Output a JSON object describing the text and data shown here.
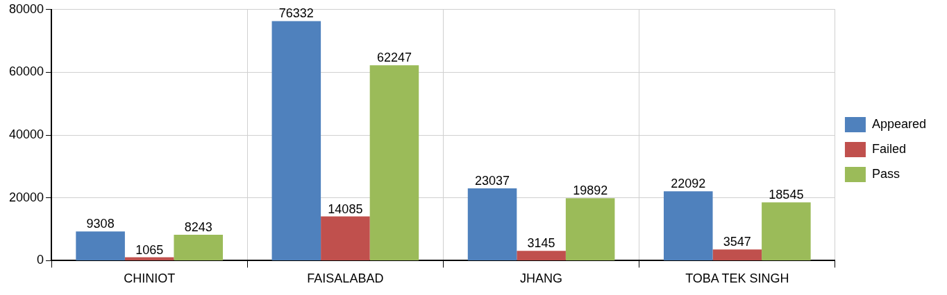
{
  "chart_data": {
    "type": "bar",
    "categories": [
      "CHINIOT",
      "FAISALABAD",
      "JHANG",
      "TOBA TEK SINGH"
    ],
    "series": [
      {
        "name": "Appeared",
        "color": "#4f81bd",
        "values": [
          9308,
          76332,
          23037,
          22092
        ]
      },
      {
        "name": "Failed",
        "color": "#c0504d",
        "values": [
          1065,
          14085,
          3145,
          3547
        ]
      },
      {
        "name": "Pass",
        "color": "#9bbb59",
        "values": [
          8243,
          62247,
          19892,
          18545
        ]
      }
    ],
    "ylim": [
      0,
      80000
    ],
    "yticks": [
      0,
      20000,
      40000,
      60000,
      80000
    ],
    "grid": true,
    "legend": "right",
    "data_labels": true
  }
}
